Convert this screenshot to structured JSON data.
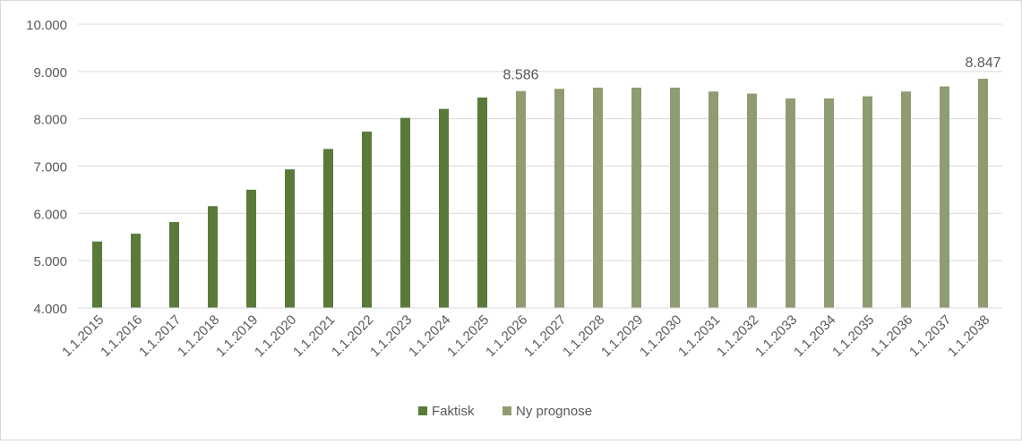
{
  "chart_data": {
    "type": "bar",
    "title": "",
    "xlabel": "",
    "ylabel": "",
    "ylim": [
      4000,
      10000
    ],
    "yticks": [
      "4.000",
      "5.000",
      "6.000",
      "7.000",
      "8.000",
      "9.000",
      "10.000"
    ],
    "ytick_values": [
      4000,
      5000,
      6000,
      7000,
      8000,
      9000,
      10000
    ],
    "grid": true,
    "legend_position": "bottom",
    "categories": [
      "1.1.2015",
      "1.1.2016",
      "1.1.2017",
      "1.1.2018",
      "1.1.2019",
      "1.1.2020",
      "1.1.2021",
      "1.1.2022",
      "1.1.2023",
      "1.1.2024",
      "1.1.2025",
      "1.1.2026",
      "1.1.2027",
      "1.1.2028",
      "1.1.2029",
      "1.1.2030",
      "1.1.2031",
      "1.1.2032",
      "1.1.2033",
      "1.1.2034",
      "1.1.2035",
      "1.1.2036",
      "1.1.2037",
      "1.1.2038"
    ],
    "series": [
      {
        "name": "Faktisk",
        "color": "#5a7a3a",
        "values": [
          5405,
          5570,
          5816,
          6152,
          6500,
          6930,
          7361,
          7728,
          8019,
          8209,
          8449,
          null,
          null,
          null,
          null,
          null,
          null,
          null,
          null,
          null,
          null,
          null,
          null,
          null
        ]
      },
      {
        "name": "Ny prognose",
        "color": "#8f9c72",
        "values": [
          null,
          null,
          null,
          null,
          null,
          null,
          null,
          null,
          null,
          null,
          null,
          8586,
          8633,
          8658,
          8658,
          8658,
          8576,
          8532,
          8430,
          8430,
          8475,
          8576,
          8684,
          8847
        ]
      }
    ],
    "data_labels": [
      {
        "category": "1.1.2026",
        "text": "8.586"
      },
      {
        "category": "1.1.2038",
        "text": "8.847"
      }
    ]
  }
}
